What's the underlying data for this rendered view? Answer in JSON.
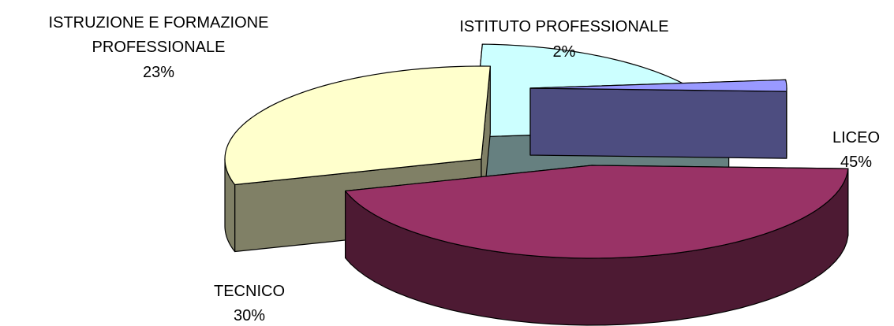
{
  "chart_data": {
    "type": "pie",
    "style": "3d-exploded",
    "grid": false,
    "legend": "none",
    "slices": [
      {
        "key": "liceo",
        "lines": [
          "LICEO"
        ],
        "percent_label": "45%",
        "value": 45,
        "top_color": "#993366",
        "side_color": "#4d1a33"
      },
      {
        "key": "tecnico",
        "lines": [
          "TECNICO"
        ],
        "percent_label": "30%",
        "value": 30,
        "top_color": "#ffffcc",
        "side_color": "#808066"
      },
      {
        "key": "istruzione",
        "lines": [
          "ISTRUZIONE E FORMAZIONE",
          "PROFESSIONALE"
        ],
        "percent_label": "23%",
        "value": 23,
        "top_color": "#ccffff",
        "side_color": "#668080"
      },
      {
        "key": "istituto",
        "lines": [
          "ISTITUTO PROFESSIONALE"
        ],
        "percent_label": "2%",
        "value": 2,
        "top_color": "#9999ff",
        "side_color": "#4d4d80"
      }
    ]
  }
}
